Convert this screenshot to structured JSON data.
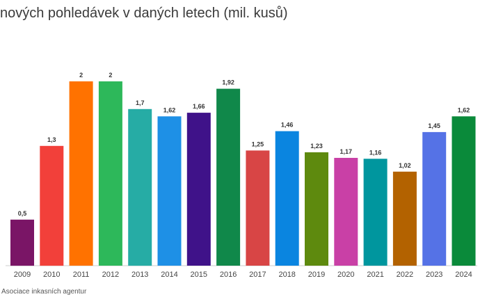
{
  "title": "nových pohledávek v daných letech (mil. kusů)",
  "source": "Asociace inkasních agentur",
  "chart_data": {
    "type": "bar",
    "title": "nových pohledávek v daných letech (mil. kusů)",
    "xlabel": "",
    "ylabel": "",
    "ylim": [
      0,
      2.2
    ],
    "grid": false,
    "categories": [
      "2009",
      "2010",
      "2011",
      "2012",
      "2013",
      "2014",
      "2015",
      "2016",
      "2017",
      "2018",
      "2019",
      "2020",
      "2021",
      "2022",
      "2023",
      "2024"
    ],
    "values": [
      0.5,
      1.3,
      2,
      2,
      1.7,
      1.62,
      1.66,
      1.92,
      1.25,
      1.46,
      1.23,
      1.17,
      1.16,
      1.02,
      1.45,
      1.62
    ],
    "value_labels": [
      "0,5",
      "1,3",
      "2",
      "2",
      "1,7",
      "1,62",
      "1,66",
      "1,92",
      "1,25",
      "1,46",
      "1,23",
      "1,17",
      "1,16",
      "1,02",
      "1,45",
      "1,62"
    ],
    "colors": [
      "#7a1566",
      "#f2403a",
      "#ff7200",
      "#2db85a",
      "#26aca5",
      "#1e90e6",
      "#3f1289",
      "#10884a",
      "#d84545",
      "#0a85e0",
      "#5e8a0e",
      "#c940a6",
      "#00969e",
      "#b36200",
      "#5572e6",
      "#0a8a3a"
    ]
  }
}
